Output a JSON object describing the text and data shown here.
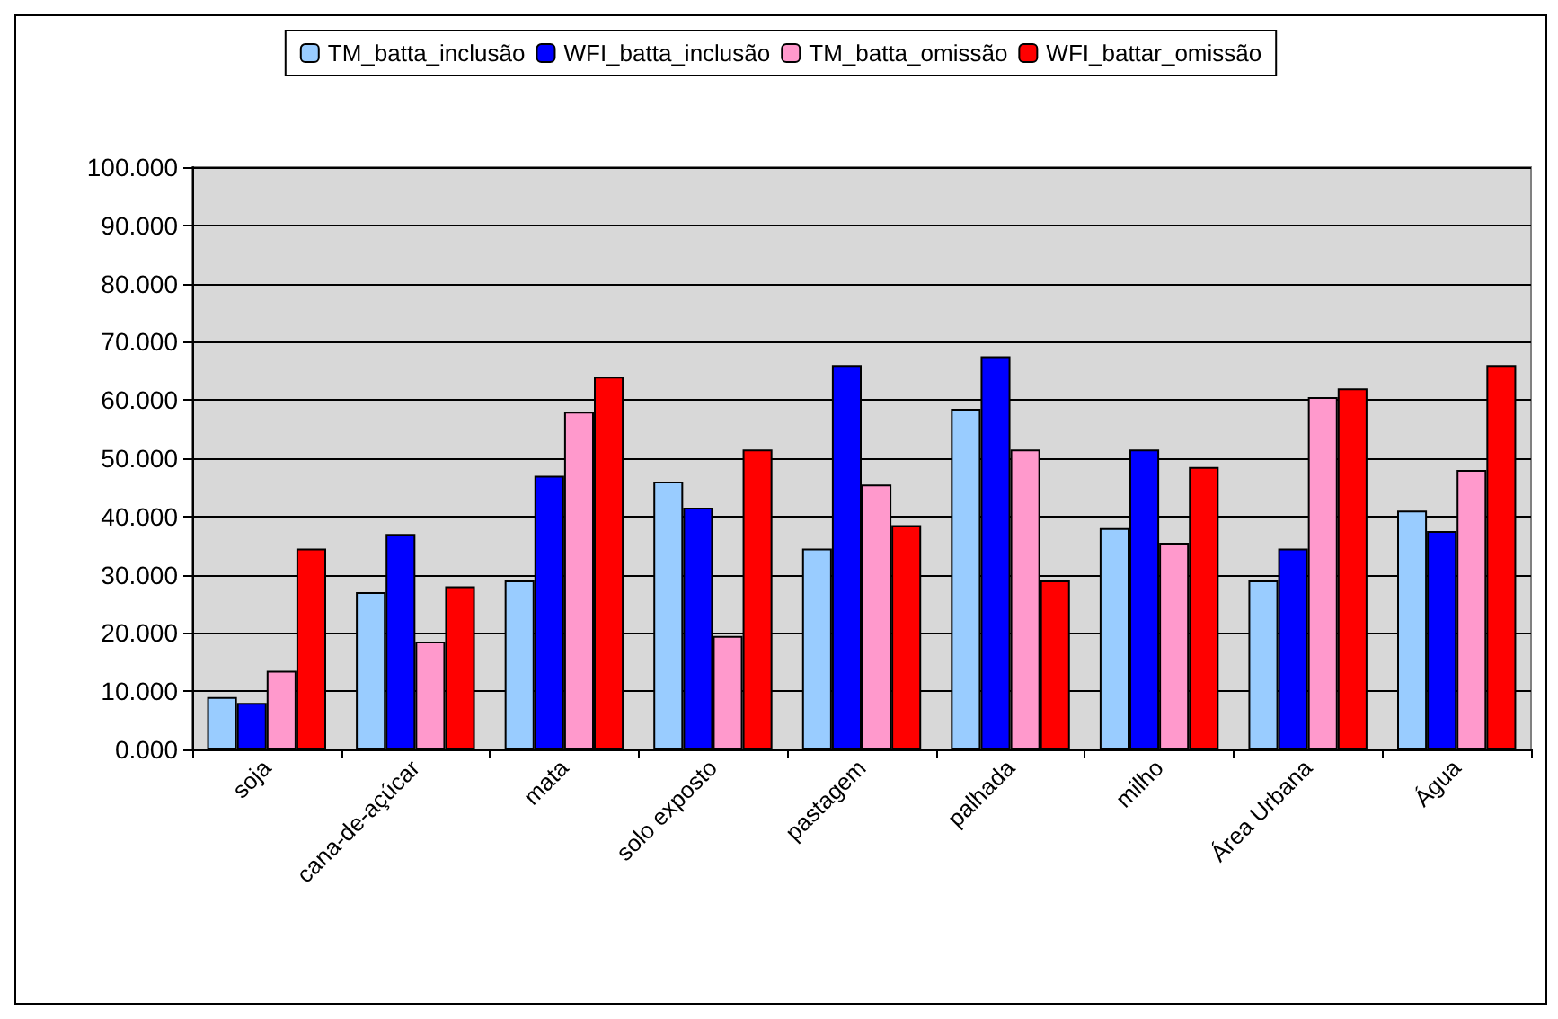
{
  "chart_data": {
    "type": "bar",
    "categories": [
      "soja",
      "cana-de-açúcar",
      "mata",
      "solo exposto",
      "pastagem",
      "palhada",
      "milho",
      "Área Urbana",
      "Água"
    ],
    "series": [
      {
        "name": "TM_batta_inclusão",
        "color": "#99ccff",
        "values": [
          9,
          27,
          29,
          46,
          34.5,
          58.5,
          38,
          29,
          41
        ]
      },
      {
        "name": "WFI_batta_inclusão",
        "color": "#0000ff",
        "values": [
          8,
          37,
          47,
          41.5,
          66,
          67.5,
          51.5,
          34.5,
          37.5
        ]
      },
      {
        "name": "TM_batta_omissão",
        "color": "#ff99cc",
        "values": [
          13.5,
          18.5,
          58,
          19.5,
          45.5,
          51.5,
          35.5,
          60.5,
          48
        ]
      },
      {
        "name": "WFI_battar_omissão",
        "color": "#ff0000",
        "values": [
          34.5,
          28,
          64,
          51.5,
          38.5,
          29,
          48.5,
          62,
          66
        ]
      }
    ],
    "ylim": [
      0,
      100
    ],
    "yticks": [
      {
        "value": 0,
        "label": "0.000"
      },
      {
        "value": 10,
        "label": "10.000"
      },
      {
        "value": 20,
        "label": "20.000"
      },
      {
        "value": 30,
        "label": "30.000"
      },
      {
        "value": 40,
        "label": "40.000"
      },
      {
        "value": 50,
        "label": "50.000"
      },
      {
        "value": 60,
        "label": "60.000"
      },
      {
        "value": 70,
        "label": "70.000"
      },
      {
        "value": 80,
        "label": "80.000"
      },
      {
        "value": 90,
        "label": "90.000"
      },
      {
        "value": 100,
        "label": "100.000"
      }
    ],
    "grid": "y",
    "legend": "top"
  }
}
